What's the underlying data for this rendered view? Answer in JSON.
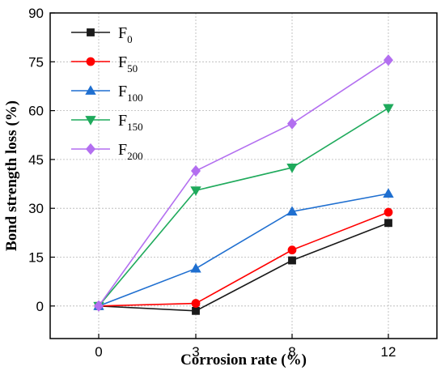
{
  "chart_data": {
    "type": "line",
    "xlabel": "Corrosion rate (%)",
    "ylabel": "Bond strength loss (%)",
    "categories": [
      "0",
      "3",
      "8",
      "12"
    ],
    "ylim": [
      -10,
      90
    ],
    "yticks": [
      0,
      15,
      30,
      45,
      60,
      75,
      90
    ],
    "grid": true,
    "legend_position": "top-left",
    "series": [
      {
        "name": "F",
        "sub": "0",
        "color": "#1a1a1a",
        "marker": "square",
        "values": [
          0,
          -1.5,
          14,
          25.5
        ]
      },
      {
        "name": "F",
        "sub": "50",
        "color": "#ff0000",
        "marker": "circle",
        "values": [
          0,
          0.8,
          17.2,
          28.8
        ]
      },
      {
        "name": "F",
        "sub": "100",
        "color": "#1f6fd0",
        "marker": "triangle-up",
        "values": [
          0,
          11.5,
          29,
          34.5
        ]
      },
      {
        "name": "F",
        "sub": "150",
        "color": "#1faa5c",
        "marker": "triangle-down",
        "values": [
          0,
          35.5,
          42.5,
          60.8
        ]
      },
      {
        "name": "F",
        "sub": "200",
        "color": "#b36ff0",
        "marker": "diamond",
        "values": [
          0,
          41.5,
          56,
          75.5
        ]
      }
    ]
  }
}
